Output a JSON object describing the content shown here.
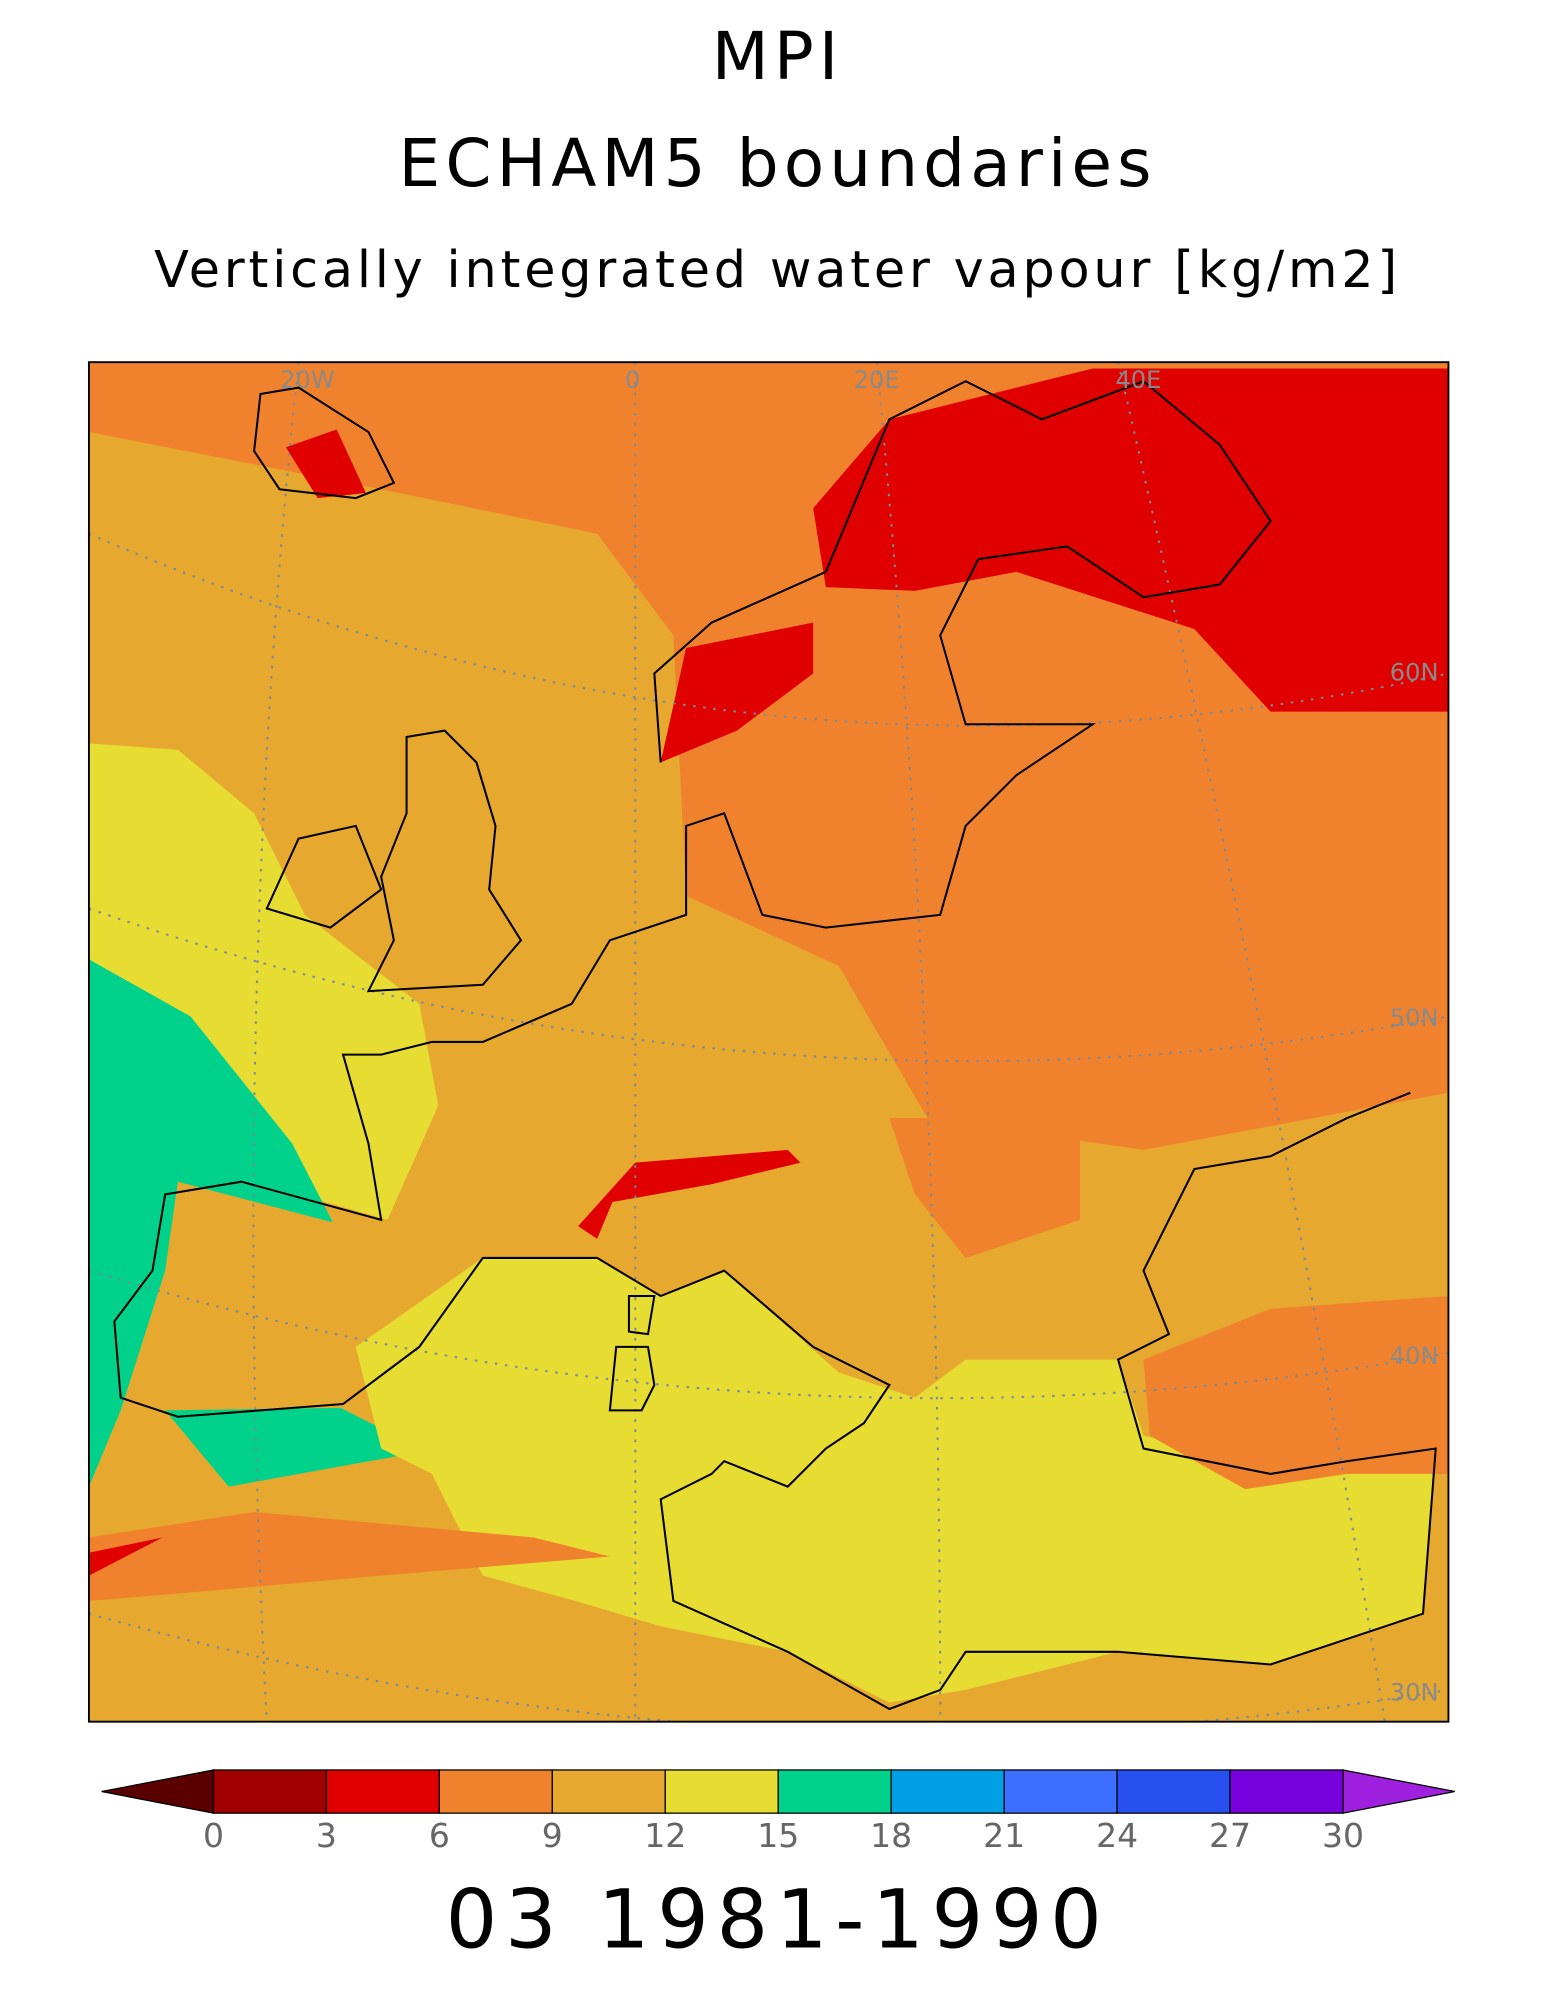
{
  "title": "MPI",
  "subtitle": "ECHAM5 boundaries",
  "variable": "Vertically integrated water vapour [kg/m2]",
  "map": {
    "grid_labels": {
      "lon": [
        "20W",
        "0",
        "20E",
        "40E"
      ],
      "lat": [
        "60N",
        "50N",
        "40N",
        "30N"
      ]
    }
  },
  "colorbar": {
    "ticks": [
      0,
      3,
      6,
      9,
      12,
      15,
      18,
      21,
      24,
      27,
      30
    ],
    "colors": [
      "#5a0000",
      "#a00000",
      "#e00000",
      "#f0822d",
      "#e6a82e",
      "#e6dc32",
      "#00d28c",
      "#00a0e6",
      "#3c6eff",
      "#2850f0",
      "#7800dc",
      "#a020e0"
    ]
  },
  "footer": "03 1981-1990"
}
